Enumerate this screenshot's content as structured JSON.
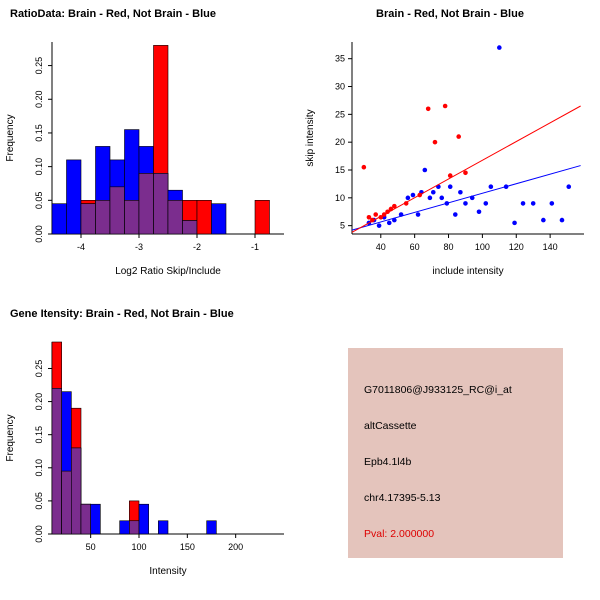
{
  "figure": {
    "bg": "#FFFFFF"
  },
  "chart_data": [
    {
      "id": "ratio-histogram",
      "type": "histogram",
      "title": "RatioData: Brain - Red, Not Brain - Blue",
      "xlabel": "Log2 Ratio Skip/Include",
      "ylabel": "Frequency",
      "xlim": [
        -4.5,
        -0.5
      ],
      "ylim": [
        0,
        0.285
      ],
      "x_ticks": [
        -4,
        -3,
        -2,
        -1
      ],
      "y_ticks": [
        0,
        0.05,
        0.1,
        0.15,
        0.2,
        0.25
      ],
      "y_tick_labels": [
        "0.00",
        "0.05",
        "0.10",
        "0.15",
        "0.20",
        "0.25"
      ],
      "bin_start": -4.5,
      "bin_width": 0.25,
      "overlap_color": "#7B2D8E",
      "series": [
        {
          "name": "Brain",
          "color": "#FF0000",
          "values": [
            0,
            0,
            0.05,
            0.05,
            0.07,
            0.05,
            0.09,
            0.28,
            0.05,
            0.05,
            0.05,
            0,
            0,
            0,
            0.05,
            0
          ]
        },
        {
          "name": "Not Brain",
          "color": "#0000FF",
          "values": [
            0.045,
            0.11,
            0.045,
            0.13,
            0.11,
            0.155,
            0.13,
            0.09,
            0.065,
            0.02,
            0,
            0.045,
            0,
            0,
            0,
            0
          ]
        }
      ]
    },
    {
      "id": "intensity-scatter",
      "type": "scatter",
      "title": "Brain - Red, Not Brain - Blue",
      "xlabel": "include intensity",
      "ylabel": "skip intensity",
      "xlim": [
        23,
        160
      ],
      "ylim": [
        3.5,
        38
      ],
      "x_ticks": [
        40,
        60,
        80,
        100,
        120,
        140
      ],
      "y_ticks": [
        5,
        10,
        15,
        20,
        25,
        30,
        35
      ],
      "series": [
        {
          "name": "Not Brain",
          "color": "#0000FF",
          "points": [
            [
              33,
              5.5
            ],
            [
              36,
              6
            ],
            [
              39,
              5
            ],
            [
              42,
              6.5
            ],
            [
              45,
              5.5
            ],
            [
              48,
              6
            ],
            [
              52,
              7
            ],
            [
              56,
              10
            ],
            [
              59,
              10.5
            ],
            [
              62,
              7
            ],
            [
              64,
              11
            ],
            [
              66,
              15
            ],
            [
              69,
              10
            ],
            [
              71,
              11
            ],
            [
              74,
              12
            ],
            [
              76,
              10
            ],
            [
              79,
              9
            ],
            [
              81,
              12
            ],
            [
              84,
              7
            ],
            [
              87,
              11
            ],
            [
              90,
              9
            ],
            [
              94,
              10
            ],
            [
              98,
              7.5
            ],
            [
              102,
              9
            ],
            [
              105,
              12
            ],
            [
              110,
              37
            ],
            [
              114,
              12
            ],
            [
              119,
              5.5
            ],
            [
              124,
              9
            ],
            [
              130,
              9
            ],
            [
              136,
              6
            ],
            [
              141,
              9
            ],
            [
              147,
              6
            ],
            [
              151,
              12
            ]
          ],
          "fit_line": {
            "x1": 23,
            "y1": 4.2,
            "x2": 158,
            "y2": 15.8
          }
        },
        {
          "name": "Brain",
          "color": "#FF0000",
          "points": [
            [
              30,
              15.5
            ],
            [
              33,
              6.5
            ],
            [
              35,
              6
            ],
            [
              37,
              7
            ],
            [
              40,
              6.5
            ],
            [
              42,
              7
            ],
            [
              44,
              7.5
            ],
            [
              46,
              8
            ],
            [
              48,
              8.5
            ],
            [
              55,
              9
            ],
            [
              63,
              10.5
            ],
            [
              68,
              26
            ],
            [
              72,
              20
            ],
            [
              78,
              26.5
            ],
            [
              81,
              14
            ],
            [
              86,
              21
            ],
            [
              90,
              14.5
            ]
          ],
          "fit_line": {
            "x1": 23,
            "y1": 3.8,
            "x2": 158,
            "y2": 26.5
          }
        }
      ]
    },
    {
      "id": "gene-intensity-histogram",
      "type": "histogram",
      "title": "Gene Itensity: Brain - Red, Not Brain - Blue",
      "xlabel": "Intensity",
      "ylabel": "Frequency",
      "xlim": [
        10,
        250
      ],
      "ylim": [
        0,
        0.29
      ],
      "x_ticks": [
        50,
        100,
        150,
        200
      ],
      "y_ticks": [
        0,
        0.05,
        0.1,
        0.15,
        0.2,
        0.25
      ],
      "y_tick_labels": [
        "0.00",
        "0.05",
        "0.10",
        "0.15",
        "0.20",
        "0.25"
      ],
      "bin_start": 10,
      "bin_width": 10,
      "overlap_color": "#7B2D8E",
      "series": [
        {
          "name": "Brain",
          "color": "#FF0000",
          "values": [
            0.29,
            0.095,
            0.19,
            0.045,
            0,
            0,
            0,
            0,
            0.05,
            0,
            0,
            0,
            0,
            0,
            0,
            0,
            0,
            0,
            0,
            0,
            0,
            0,
            0,
            0
          ]
        },
        {
          "name": "Not Brain",
          "color": "#0000FF",
          "values": [
            0.22,
            0.215,
            0.13,
            0.045,
            0.045,
            0,
            0,
            0.02,
            0.02,
            0.045,
            0,
            0.02,
            0,
            0,
            0,
            0,
            0.02,
            0,
            0,
            0,
            0,
            0,
            0,
            0
          ]
        }
      ]
    }
  ],
  "info_box": {
    "bg": "#E4C4BC",
    "text_color": "#000000",
    "pval_color": "#DD0000",
    "lines": [
      "G7011806@J933125_RC@i_at",
      "altCassette",
      "Epb4.1l4b",
      "chr4.17395-5.13"
    ],
    "pval": "Pval: 2.000000"
  }
}
